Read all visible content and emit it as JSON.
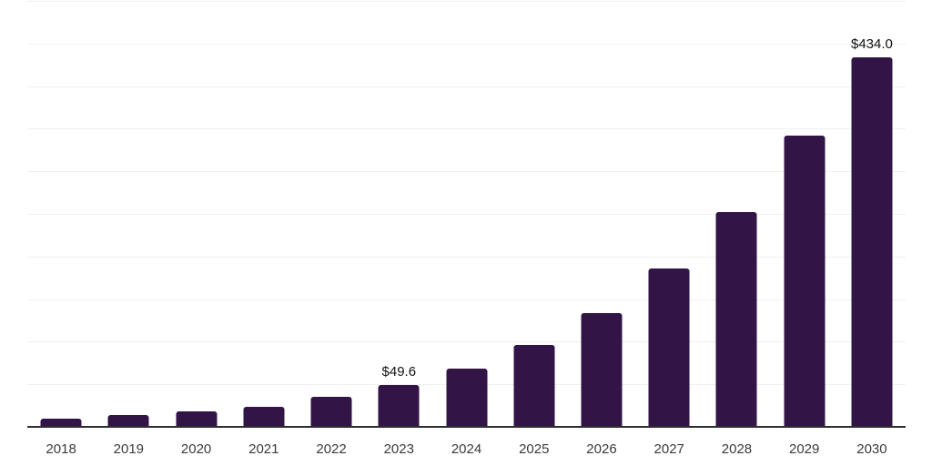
{
  "chart_data": {
    "type": "bar",
    "title": "",
    "xlabel": "",
    "ylabel": "",
    "categories": [
      "2018",
      "2019",
      "2020",
      "2021",
      "2022",
      "2023",
      "2024",
      "2025",
      "2026",
      "2027",
      "2028",
      "2029",
      "2030"
    ],
    "values": [
      10,
      13.5,
      18.5,
      24,
      35.5,
      49.6,
      68.5,
      96,
      133.5,
      186,
      252,
      342,
      434
    ],
    "data_labels": [
      "",
      "",
      "",
      "",
      "",
      "$49.6",
      "",
      "",
      "",
      "",
      "",
      "",
      "$434.0"
    ],
    "ylim": [
      0,
      500
    ],
    "gridline_interval": 50,
    "grid": "horizontal",
    "legend": "none",
    "colors": {
      "bar": "#321447",
      "gridline": "#f0f0f0",
      "axis": "#2e2e2e",
      "tick_label": "#3a3a3a",
      "data_label": "#111111",
      "background": "#ffffff"
    }
  }
}
